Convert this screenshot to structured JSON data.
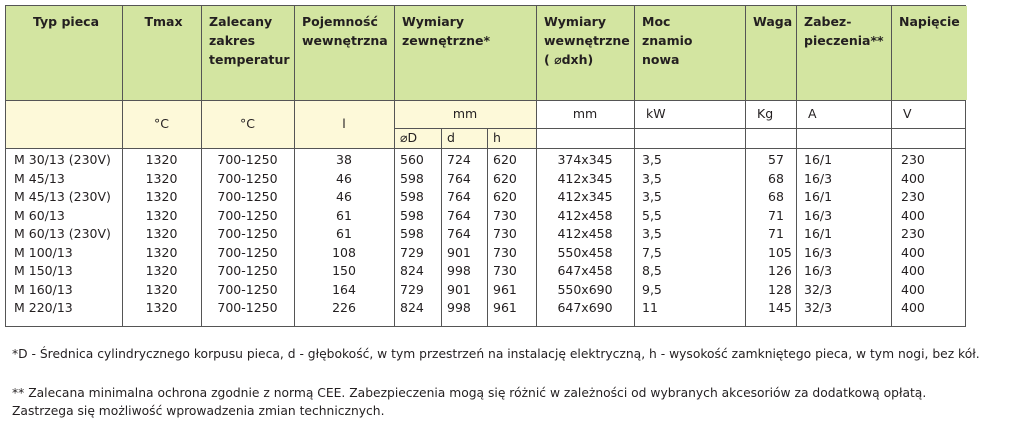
{
  "headers": [
    "Typ pieca",
    "Tmax",
    "Zalecany zakres temperatur",
    "Pojemność wewnętrzna",
    "Wymiary zewnętrzne*",
    "Wymiary wewnętrzne (⌀dxh)",
    "Moc znamio nowa",
    "Waga",
    "Zabez-pieczenia**",
    "Napięcie"
  ],
  "header_lines": [
    [
      "Typ pieca"
    ],
    [
      "Tmax"
    ],
    [
      "Zalecany",
      "zakres",
      "temperatur"
    ],
    [
      "Pojemność",
      "wewnętrzna"
    ],
    [
      "Wymiary",
      "zewnętrzne*"
    ],
    [
      "Wymiary",
      "wewnętrzne",
      "( ⌀dxh)"
    ],
    [
      "Moc",
      "znamio",
      "nowa"
    ],
    [
      "Waga"
    ],
    [
      "Zabez-",
      "pieczenia**"
    ],
    [
      "Napięcie"
    ]
  ],
  "units": [
    "",
    "°C",
    "°C",
    "l",
    "mm",
    "mm",
    "kW",
    "Kg",
    "A",
    "V"
  ],
  "sub_headers": [
    "⌀D",
    "d",
    "h"
  ],
  "rows": [
    [
      "M 30/13 (230V)",
      "1320",
      "700-1250",
      "38",
      "560",
      "724",
      "620",
      "374x345",
      "3,5",
      "57",
      "16/1",
      "230"
    ],
    [
      "M 45/13",
      "1320",
      "700-1250",
      "46",
      "598",
      "764",
      "620",
      "412x345",
      "3,5",
      "68",
      "16/3",
      "400"
    ],
    [
      "M 45/13 (230V)",
      "1320",
      "700-1250",
      "46",
      "598",
      "764",
      "620",
      "412x345",
      "3,5",
      "68",
      "16/1",
      "230"
    ],
    [
      "M 60/13",
      "1320",
      "700-1250",
      "61",
      "598",
      "764",
      "730",
      "412x458",
      "5,5",
      "71",
      "16/3",
      "400"
    ],
    [
      "M 60/13 (230V)",
      "1320",
      "700-1250",
      "61",
      "598",
      "764",
      "730",
      "412x458",
      "3,5",
      "71",
      "16/1",
      "230"
    ],
    [
      "M 100/13",
      "1320",
      "700-1250",
      "108",
      "729",
      "901",
      "730",
      "550x458",
      "7,5",
      "105",
      "16/3",
      "400"
    ],
    [
      "M 150/13",
      "1320",
      "700-1250",
      "150",
      "824",
      "998",
      "730",
      "647x458",
      "8,5",
      "126",
      "16/3",
      "400"
    ],
    [
      "M 160/13",
      "1320",
      "700-1250",
      "164",
      "729",
      "901",
      "961",
      "550x690",
      "9,5",
      "128",
      "32/3",
      "400"
    ],
    [
      "M 220/13",
      "1320",
      "700-1250",
      "226",
      "824",
      "998",
      "961",
      "647x690",
      "11",
      "145",
      "32/3",
      "400"
    ]
  ],
  "footnotes": [
    "*D - Średnica cylindrycznego korpusu pieca, d - głębokość, w tym przestrzeń na instalację elektryczną, h - wysokość zamkniętego pieca, w tym nogi, bez kół.",
    "** Zalecana minimalna ochrona zgodnie z normą CEE. Zabezpieczenia mogą się różnić w zależności od wybranych akcesoriów za dodatkową opłatą.",
    "Zastrzega się możliwość wprowadzenia zmian technicznych."
  ],
  "colors": {
    "header_bg": "#d3e5a1",
    "unit_bg": "#fdf9d9",
    "border": "#555555"
  }
}
